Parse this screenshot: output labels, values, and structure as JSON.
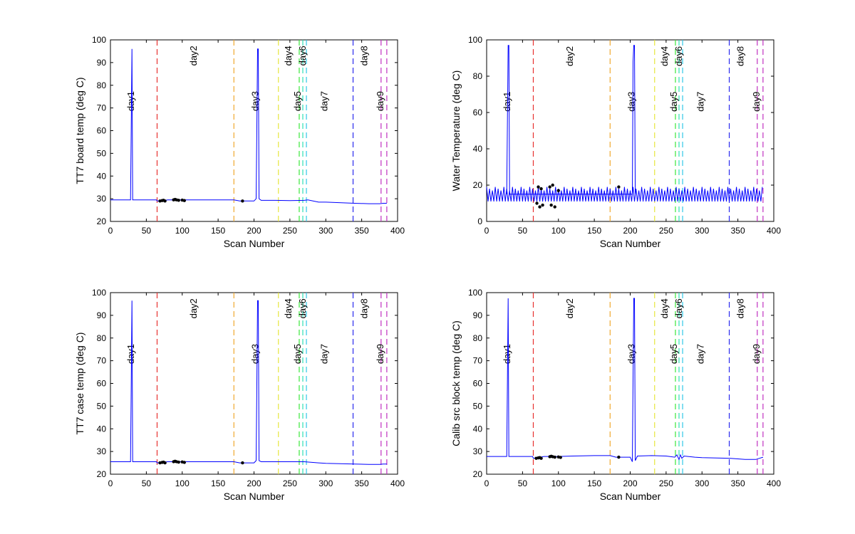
{
  "colors": {
    "series": "#0000ff",
    "markers": "#000000",
    "axes": "#000000"
  },
  "chart_data": [
    {
      "type": "line",
      "ylabel": "TT7 board temp (deg C)",
      "xlabel": "Scan Number",
      "xlim": [
        0,
        400
      ],
      "ylim": [
        20,
        100
      ],
      "xticks": [
        0,
        50,
        100,
        150,
        200,
        250,
        300,
        350,
        400
      ],
      "yticks": [
        20,
        30,
        40,
        50,
        60,
        70,
        80,
        90,
        100
      ],
      "series": [
        {
          "x": [
            0,
            28,
            29,
            30,
            31,
            32,
            40,
            64,
            65,
            70,
            80,
            90,
            100,
            110,
            150,
            172,
            180,
            200,
            203,
            204,
            205,
            206,
            207,
            210,
            230,
            250,
            270,
            275,
            290,
            300,
            340,
            360,
            375,
            380,
            385
          ],
          "y": [
            29.5,
            29.5,
            62,
            96,
            29.5,
            29.5,
            29.5,
            29.5,
            29,
            29,
            29.5,
            29.5,
            29.5,
            29.5,
            29.5,
            29.5,
            29,
            29,
            30,
            62,
            96,
            96,
            30,
            29.3,
            29.3,
            29.2,
            29.3,
            29.5,
            28.5,
            28.5,
            28,
            27.8,
            27.8,
            28,
            28
          ]
        }
      ],
      "markers": {
        "x": [
          69,
          72,
          74,
          76,
          88,
          90,
          92,
          95,
          100,
          103,
          184
        ],
        "y": [
          29,
          29.2,
          29.3,
          29,
          29.5,
          29.7,
          29.5,
          29.3,
          29.4,
          29.2,
          29
        ]
      },
      "day_lines": [
        {
          "x": 65,
          "color": "#e8302f",
          "label": "day1",
          "label_x": 33,
          "label_y": 73
        },
        {
          "x": 172,
          "color": "#f0a930",
          "label": "day2",
          "label_x": 120,
          "label_y": 93
        },
        {
          "x": 234,
          "color": "#e6e63c",
          "label": "day3",
          "label_x": 206,
          "label_y": 73
        },
        {
          "x": 263,
          "color": "#3ae63a",
          "label": "day4",
          "label_x": 252,
          "label_y": 93
        },
        {
          "x": 268,
          "color": "#30e0b4",
          "label": "day5",
          "label_x": 265,
          "label_y": 73
        },
        {
          "x": 273,
          "color": "#30c8e8",
          "label": "day6",
          "label_x": 272,
          "label_y": 93
        },
        {
          "x": 338,
          "color": "#2a2aee",
          "label": "day7",
          "label_x": 302,
          "label_y": 73
        },
        {
          "x": 377,
          "color": "#c030c0",
          "label": "day8",
          "label_x": 358,
          "label_y": 93
        },
        {
          "x": 385,
          "color": "#c030c0",
          "label": "day9",
          "label_x": 380,
          "label_y": 73
        }
      ]
    },
    {
      "type": "line",
      "ylabel": "Water Temperature (deg C)",
      "xlabel": "Scan Number",
      "xlim": [
        0,
        400
      ],
      "ylim": [
        0,
        100
      ],
      "xticks": [
        0,
        50,
        100,
        150,
        200,
        250,
        300,
        350,
        400
      ],
      "yticks": [
        0,
        20,
        40,
        60,
        80,
        100
      ],
      "oscillation": {
        "low": 9,
        "high": 19,
        "period": 4
      },
      "series": [
        {
          "x": [
            28,
            29,
            30,
            31,
            32,
            203,
            204,
            205,
            206,
            207
          ],
          "y": [
            15,
            56,
            97,
            97,
            15,
            15,
            88,
            97,
            97,
            15
          ]
        }
      ],
      "markers": {
        "x": [
          70,
          72,
          74,
          76,
          78,
          88,
          90,
          92,
          95,
          100,
          184
        ],
        "y": [
          10,
          19,
          8,
          18,
          9,
          19,
          9,
          20,
          8,
          17,
          19
        ]
      },
      "day_lines": [
        {
          "x": 65,
          "color": "#e8302f",
          "label": "day1",
          "label_x": 33,
          "label_y": 66
        },
        {
          "x": 172,
          "color": "#f0a930",
          "label": "day2",
          "label_x": 120,
          "label_y": 91
        },
        {
          "x": 234,
          "color": "#e6e63c",
          "label": "day3",
          "label_x": 206,
          "label_y": 66
        },
        {
          "x": 263,
          "color": "#3ae63a",
          "label": "day4",
          "label_x": 252,
          "label_y": 91
        },
        {
          "x": 268,
          "color": "#30e0b4",
          "label": "day5",
          "label_x": 265,
          "label_y": 66
        },
        {
          "x": 273,
          "color": "#30c8e8",
          "label": "day6",
          "label_x": 272,
          "label_y": 91
        },
        {
          "x": 338,
          "color": "#2a2aee",
          "label": "day7",
          "label_x": 302,
          "label_y": 66
        },
        {
          "x": 377,
          "color": "#c030c0",
          "label": "day8",
          "label_x": 358,
          "label_y": 91
        },
        {
          "x": 385,
          "color": "#c030c0",
          "label": "day9",
          "label_x": 380,
          "label_y": 66
        }
      ]
    },
    {
      "type": "line",
      "ylabel": "TT7 case temp (deg C)",
      "xlabel": "Scan Number",
      "xlim": [
        0,
        400
      ],
      "ylim": [
        20,
        100
      ],
      "xticks": [
        0,
        50,
        100,
        150,
        200,
        250,
        300,
        350,
        400
      ],
      "yticks": [
        20,
        30,
        40,
        50,
        60,
        70,
        80,
        90,
        100
      ],
      "series": [
        {
          "x": [
            0,
            28,
            29,
            30,
            31,
            32,
            64,
            65,
            80,
            100,
            150,
            172,
            180,
            200,
            203,
            204,
            205,
            206,
            207,
            210,
            230,
            250,
            270,
            290,
            300,
            340,
            360,
            375,
            380,
            385
          ],
          "y": [
            25.5,
            25.5,
            60,
            96.5,
            25.5,
            25.5,
            25.5,
            25,
            25.5,
            25.5,
            25.5,
            25.5,
            25,
            25,
            26,
            60,
            96.5,
            96.5,
            26,
            25.5,
            25.5,
            25.5,
            25.5,
            25,
            24.8,
            24.5,
            24.3,
            24.3,
            24.5,
            24.5
          ]
        }
      ],
      "markers": {
        "x": [
          69,
          72,
          74,
          76,
          88,
          90,
          92,
          95,
          100,
          103,
          184
        ],
        "y": [
          25,
          25.2,
          25.3,
          25,
          25.5,
          25.7,
          25.5,
          25.3,
          25.4,
          25.2,
          25
        ]
      },
      "day_lines": [
        {
          "x": 65,
          "color": "#e8302f",
          "label": "day1",
          "label_x": 33,
          "label_y": 73
        },
        {
          "x": 172,
          "color": "#f0a930",
          "label": "day2",
          "label_x": 120,
          "label_y": 93
        },
        {
          "x": 234,
          "color": "#e6e63c",
          "label": "day3",
          "label_x": 206,
          "label_y": 73
        },
        {
          "x": 263,
          "color": "#3ae63a",
          "label": "day4",
          "label_x": 252,
          "label_y": 93
        },
        {
          "x": 268,
          "color": "#30e0b4",
          "label": "day5",
          "label_x": 265,
          "label_y": 73
        },
        {
          "x": 273,
          "color": "#30c8e8",
          "label": "day6",
          "label_x": 272,
          "label_y": 93
        },
        {
          "x": 338,
          "color": "#2a2aee",
          "label": "day7",
          "label_x": 302,
          "label_y": 73
        },
        {
          "x": 377,
          "color": "#c030c0",
          "label": "day8",
          "label_x": 358,
          "label_y": 93
        },
        {
          "x": 385,
          "color": "#c030c0",
          "label": "day9",
          "label_x": 380,
          "label_y": 73
        }
      ]
    },
    {
      "type": "line",
      "ylabel": "Calib src block temp (deg C)",
      "xlabel": "Scan Number",
      "xlim": [
        0,
        400
      ],
      "ylim": [
        20,
        100
      ],
      "xticks": [
        0,
        50,
        100,
        150,
        200,
        250,
        300,
        350,
        400
      ],
      "yticks": [
        20,
        30,
        40,
        50,
        60,
        70,
        80,
        90,
        100
      ],
      "series": [
        {
          "x": [
            0,
            28,
            29,
            30,
            31,
            32,
            64,
            65,
            80,
            100,
            120,
            150,
            172,
            180,
            200,
            203,
            204,
            205,
            206,
            207,
            210,
            230,
            250,
            262,
            265,
            268,
            270,
            272,
            275,
            290,
            300,
            340,
            360,
            375,
            380,
            385
          ],
          "y": [
            27.8,
            27.8,
            62,
            97.5,
            27.8,
            27.8,
            27.8,
            27,
            27.8,
            27.8,
            28,
            28.2,
            28.2,
            27.5,
            27.5,
            25.5,
            62,
            97.5,
            97.5,
            26,
            28,
            28.2,
            28,
            27.5,
            28.5,
            26.5,
            28.5,
            27,
            28,
            27.5,
            27.3,
            27,
            26.5,
            26.5,
            27,
            27.5
          ]
        }
      ],
      "markers": {
        "x": [
          69,
          72,
          74,
          76,
          88,
          90,
          92,
          95,
          100,
          103,
          184
        ],
        "y": [
          27,
          27.2,
          27.3,
          27,
          27.7,
          27.9,
          27.7,
          27.5,
          27.6,
          27.4,
          27.5
        ]
      },
      "day_lines": [
        {
          "x": 65,
          "color": "#e8302f",
          "label": "day1",
          "label_x": 33,
          "label_y": 73
        },
        {
          "x": 172,
          "color": "#f0a930",
          "label": "day2",
          "label_x": 120,
          "label_y": 93
        },
        {
          "x": 234,
          "color": "#e6e63c",
          "label": "day3",
          "label_x": 206,
          "label_y": 73
        },
        {
          "x": 263,
          "color": "#3ae63a",
          "label": "day4",
          "label_x": 252,
          "label_y": 93
        },
        {
          "x": 268,
          "color": "#30e0b4",
          "label": "day5",
          "label_x": 265,
          "label_y": 73
        },
        {
          "x": 273,
          "color": "#30c8e8",
          "label": "day6",
          "label_x": 272,
          "label_y": 93
        },
        {
          "x": 338,
          "color": "#2a2aee",
          "label": "day7",
          "label_x": 302,
          "label_y": 73
        },
        {
          "x": 377,
          "color": "#c030c0",
          "label": "day8",
          "label_x": 358,
          "label_y": 93
        },
        {
          "x": 385,
          "color": "#c030c0",
          "label": "day9",
          "label_x": 380,
          "label_y": 73
        }
      ]
    }
  ]
}
